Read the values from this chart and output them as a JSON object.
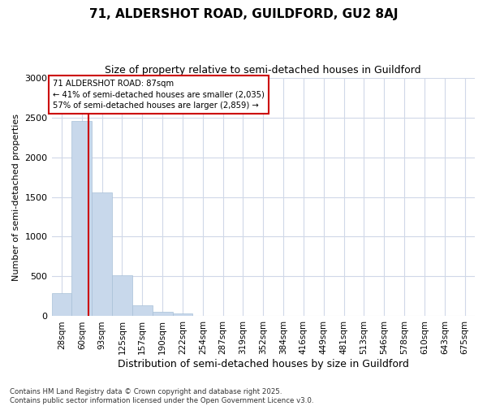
{
  "title_line1": "71, ALDERSHOT ROAD, GUILDFORD, GU2 8AJ",
  "title_line2": "Size of property relative to semi-detached houses in Guildford",
  "xlabel": "Distribution of semi-detached houses by size in Guildford",
  "ylabel": "Number of semi-detached properties",
  "bins": [
    "28sqm",
    "60sqm",
    "93sqm",
    "125sqm",
    "157sqm",
    "190sqm",
    "222sqm",
    "254sqm",
    "287sqm",
    "319sqm",
    "352sqm",
    "384sqm",
    "416sqm",
    "449sqm",
    "481sqm",
    "513sqm",
    "546sqm",
    "578sqm",
    "610sqm",
    "643sqm",
    "675sqm"
  ],
  "bar_heights": [
    290,
    2450,
    1560,
    520,
    140,
    60,
    40,
    0,
    0,
    0,
    0,
    0,
    0,
    0,
    0,
    0,
    0,
    0,
    0,
    0,
    0
  ],
  "bar_color": "#c8d8eb",
  "bar_edge_color": "#a8c0d8",
  "annotation_text_line1": "71 ALDERSHOT ROAD: 87sqm",
  "annotation_text_line2": "← 41% of semi-detached houses are smaller (2,035)",
  "annotation_text_line3": "57% of semi-detached houses are larger (2,859) →",
  "vline_color": "#cc0000",
  "annotation_box_facecolor": "#ffffff",
  "annotation_box_edgecolor": "#cc0000",
  "ylim": [
    0,
    3000
  ],
  "yticks": [
    0,
    500,
    1000,
    1500,
    2000,
    2500,
    3000
  ],
  "footer_line1": "Contains HM Land Registry data © Crown copyright and database right 2025.",
  "footer_line2": "Contains public sector information licensed under the Open Government Licence v3.0.",
  "bg_color": "#ffffff",
  "plot_bg_color": "#ffffff",
  "grid_color": "#d0d8e8"
}
